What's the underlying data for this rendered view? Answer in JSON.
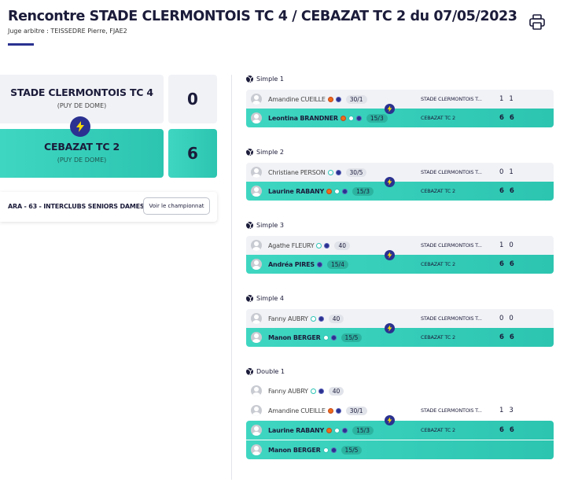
{
  "header": {
    "title": "Rencontre STADE CLERMONTOIS TC 4 / CEBAZAT TC 2 du 07/05/2023",
    "referee": "Juge arbitre : TEISSEDRE Pierre, FJAE2",
    "print_icon": "printer-icon"
  },
  "teams": {
    "home": {
      "name": "STADE CLERMONTOIS TC 4",
      "region": "(PUY DE DOME)",
      "score": "0"
    },
    "away": {
      "name": "CEBAZAT TC 2",
      "region": "(PUY DE DOME)",
      "score": "6"
    },
    "winner_icon": "lightning-bolt-icon"
  },
  "championship": {
    "label": "ARA - 63 - INTERCLUBS SENIORS DAMES",
    "button": "Voir le championnat"
  },
  "colors": {
    "accent": "#2a3190",
    "winner": "#3fd6c1",
    "neutral": "#f1f2f6"
  },
  "matches": [
    {
      "title": "Simple 1",
      "players": [
        {
          "name": "Amandine CUEILLE",
          "dots": [
            "orange",
            "navy"
          ],
          "rank": "30/1",
          "team": "STADE CLERMONTOIS T...",
          "s1": "1",
          "s2": "1"
        },
        {
          "name": "Leontina BRANDNER",
          "dots": [
            "orange",
            "teal",
            "navy"
          ],
          "rank": "15/3",
          "team": "CEBAZAT TC 2",
          "s1": "6",
          "s2": "6"
        }
      ]
    },
    {
      "title": "Simple 2",
      "players": [
        {
          "name": "Christiane PERSON",
          "dots": [
            "teal",
            "navy"
          ],
          "rank": "30/5",
          "team": "STADE CLERMONTOIS T...",
          "s1": "0",
          "s2": "1"
        },
        {
          "name": "Laurine RABANY",
          "dots": [
            "orange",
            "teal",
            "navy"
          ],
          "rank": "15/3",
          "team": "CEBAZAT TC 2",
          "s1": "6",
          "s2": "6"
        }
      ]
    },
    {
      "title": "Simple 3",
      "players": [
        {
          "name": "Agathe FLEURY",
          "dots": [
            "teal",
            "navy"
          ],
          "rank": "40",
          "team": "STADE CLERMONTOIS T...",
          "s1": "1",
          "s2": "0"
        },
        {
          "name": "Andréa PIRES",
          "dots": [
            "navy"
          ],
          "rank": "15/4",
          "team": "CEBAZAT TC 2",
          "s1": "6",
          "s2": "6"
        }
      ]
    },
    {
      "title": "Simple 4",
      "players": [
        {
          "name": "Fanny AUBRY",
          "dots": [
            "teal",
            "navy"
          ],
          "rank": "40",
          "team": "STADE CLERMONTOIS T...",
          "s1": "0",
          "s2": "0"
        },
        {
          "name": "Manon BERGER",
          "dots": [
            "teal",
            "navy"
          ],
          "rank": "15/5",
          "team": "CEBAZAT TC 2",
          "s1": "6",
          "s2": "6"
        }
      ]
    },
    {
      "title": "Double 1",
      "players": [
        {
          "name": "Fanny AUBRY",
          "dots": [
            "teal",
            "navy"
          ],
          "rank": "40"
        },
        {
          "name": "Amandine CUEILLE",
          "dots": [
            "orange",
            "navy"
          ],
          "rank": "30/1",
          "team": "STADE CLERMONTOIS T...",
          "s1": "1",
          "s2": "3"
        },
        {
          "name": "Laurine RABANY",
          "dots": [
            "orange",
            "teal",
            "navy"
          ],
          "rank": "15/3",
          "team": "CEBAZAT TC 2",
          "s1": "6",
          "s2": "6"
        },
        {
          "name": "Manon BERGER",
          "dots": [
            "teal",
            "navy"
          ],
          "rank": "15/5"
        }
      ]
    }
  ]
}
